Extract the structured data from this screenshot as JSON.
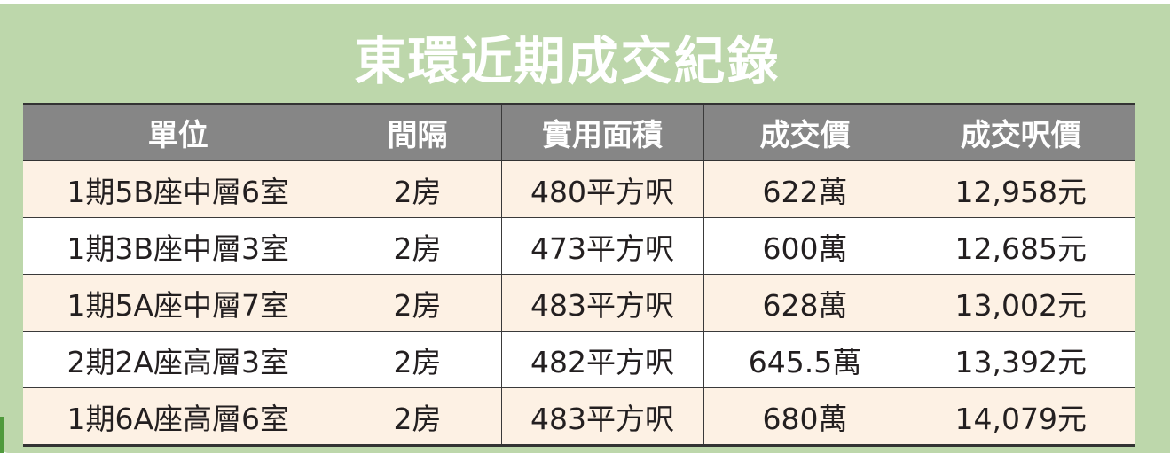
{
  "title": "東環近期成交紀錄",
  "colors": {
    "background": "#bdd7ab",
    "header": "#868686",
    "row_alt": "#fdf1e4"
  },
  "headers": [
    "單位",
    "間隔",
    "實用面積",
    "成交價",
    "成交呎價"
  ],
  "rows": [
    [
      "1期5B座中層6室",
      "2房",
      "480平方呎",
      "622萬",
      "12,958元"
    ],
    [
      "1期3B座中層3室",
      "2房",
      "473平方呎",
      "600萬",
      "12,685元"
    ],
    [
      "1期5A座中層7室",
      "2房",
      "483平方呎",
      "628萬",
      "13,002元"
    ],
    [
      "2期2A座高層3室",
      "2房",
      "482平方呎",
      "645.5萬",
      "13,392元"
    ],
    [
      "1期6A座高層6室",
      "2房",
      "483平方呎",
      "680萬",
      "14,079元"
    ]
  ]
}
